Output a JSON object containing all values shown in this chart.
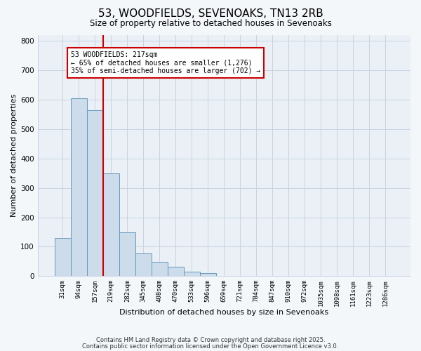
{
  "title1": "53, WOODFIELDS, SEVENOAKS, TN13 2RB",
  "title2": "Size of property relative to detached houses in Sevenoaks",
  "xlabel": "Distribution of detached houses by size in Sevenoaks",
  "ylabel": "Number of detached properties",
  "bar_labels": [
    "31sqm",
    "94sqm",
    "157sqm",
    "219sqm",
    "282sqm",
    "345sqm",
    "408sqm",
    "470sqm",
    "533sqm",
    "596sqm",
    "659sqm",
    "721sqm",
    "784sqm",
    "847sqm",
    "910sqm",
    "972sqm",
    "1035sqm",
    "1098sqm",
    "1161sqm",
    "1223sqm",
    "1286sqm"
  ],
  "bar_values": [
    130,
    605,
    565,
    350,
    150,
    77,
    48,
    32,
    14,
    10,
    0,
    0,
    0,
    0,
    0,
    2,
    0,
    0,
    0,
    0,
    0
  ],
  "bar_color": "#cddcea",
  "bar_edge_color": "#6699bb",
  "property_line_x": 2.5,
  "property_line_color": "#cc0000",
  "annotation_title": "53 WOODFIELDS: 217sqm",
  "annotation_line1": "← 65% of detached houses are smaller (1,276)",
  "annotation_line2": "35% of semi-detached houses are larger (702) →",
  "annotation_box_color": "#cc0000",
  "ylim": [
    0,
    820
  ],
  "yticks": [
    0,
    100,
    200,
    300,
    400,
    500,
    600,
    700,
    800
  ],
  "footer1": "Contains HM Land Registry data © Crown copyright and database right 2025.",
  "footer2": "Contains public sector information licensed under the Open Government Licence v3.0.",
  "fig_background": "#f4f7fa",
  "plot_background": "#eaf0f6",
  "grid_color": "#c8d4e0"
}
